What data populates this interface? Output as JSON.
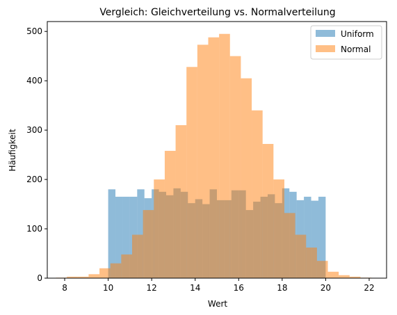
{
  "chart_data": {
    "type": "bar",
    "title": "Vergleich: Gleichverteilung vs. Normalverteilung",
    "xlabel": "Wert",
    "ylabel": "Häufigkeit",
    "xlim": [
      7.2,
      22.8
    ],
    "ylim": [
      0,
      520
    ],
    "xticks": [
      8,
      10,
      12,
      14,
      16,
      18,
      20,
      22
    ],
    "yticks": [
      0,
      100,
      200,
      300,
      400,
      500
    ],
    "grid": false,
    "legend_position": "top-right",
    "series": [
      {
        "name": "Uniform",
        "color": "#1f77b4",
        "opacity": 0.5,
        "bin_start": 10,
        "bin_width": 0.3333,
        "counts": [
          180,
          165,
          165,
          165,
          180,
          162,
          180,
          175,
          168,
          182,
          175,
          152,
          160,
          150,
          180,
          158,
          158,
          178,
          178,
          138,
          155,
          165,
          170,
          152,
          182,
          175,
          158,
          165,
          157,
          165
        ]
      },
      {
        "name": "Normal",
        "color": "#ff7f0e",
        "opacity": 0.5,
        "bin_start": 7.6,
        "bin_width": 0.5,
        "counts": [
          1,
          3,
          3,
          8,
          20,
          30,
          48,
          88,
          138,
          200,
          258,
          310,
          428,
          473,
          488,
          495,
          450,
          405,
          340,
          272,
          200,
          132,
          88,
          62,
          35,
          13,
          6,
          3,
          1
        ]
      }
    ]
  }
}
